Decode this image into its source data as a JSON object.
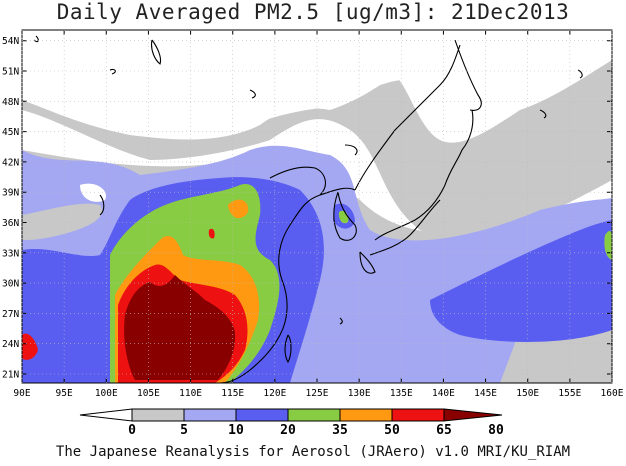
{
  "title": "Daily Averaged PM2.5 [ug/m3]: 21Dec2013",
  "footer": "The Japanese Reanalysis for Aerosol (JRAero) v1.0 MRI/KU_RIAM",
  "map": {
    "lon_labels": [
      "90E",
      "95E",
      "100E",
      "105E",
      "110E",
      "115E",
      "120E",
      "125E",
      "130E",
      "135E",
      "140E",
      "145E",
      "150E",
      "155E",
      "160E"
    ],
    "lat_labels": [
      "21N",
      "24N",
      "27N",
      "30N",
      "33N",
      "36N",
      "39N",
      "42N",
      "45N",
      "48N",
      "51N",
      "54N"
    ]
  },
  "colorbar": {
    "ticks": [
      "0",
      "5",
      "10",
      "20",
      "35",
      "50",
      "65",
      "80"
    ],
    "colors": [
      "#ffffff",
      "#c8c8c8",
      "#a4a8f2",
      "#5a5ef0",
      "#88cc44",
      "#ff9911",
      "#ee1111",
      "#880000"
    ]
  }
}
